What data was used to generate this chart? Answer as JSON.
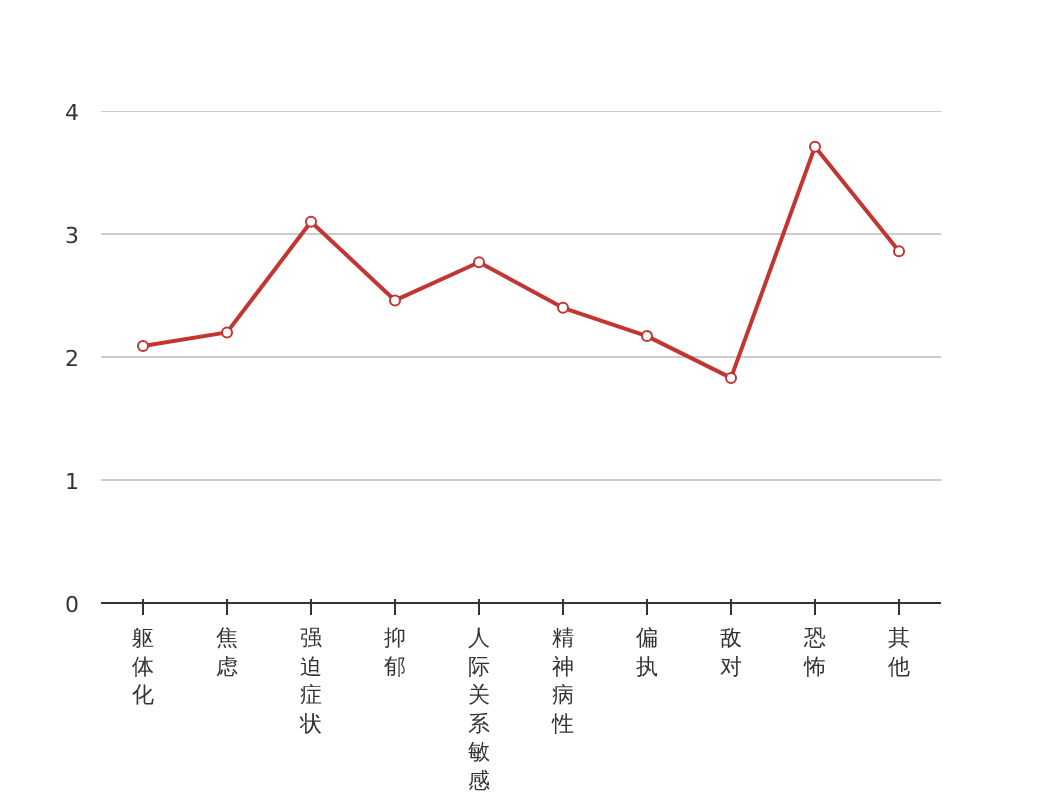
{
  "chart_data": {
    "type": "line",
    "categories": [
      "躯体化",
      "焦虑",
      "强迫症状",
      "抑郁",
      "人际关系敏感",
      "精神病性",
      "偏执",
      "敌对",
      "恐怖",
      "其他"
    ],
    "series": [
      {
        "color": "#c23531",
        "values": [
          2.09,
          2.2,
          3.1,
          2.46,
          2.77,
          2.4,
          2.17,
          1.83,
          3.71,
          2.86
        ]
      }
    ],
    "ylim": [
      0,
      4
    ],
    "yticks": [
      0,
      1,
      2,
      3,
      4
    ],
    "grid": "y",
    "marker": "circle",
    "line_style": "solid"
  }
}
